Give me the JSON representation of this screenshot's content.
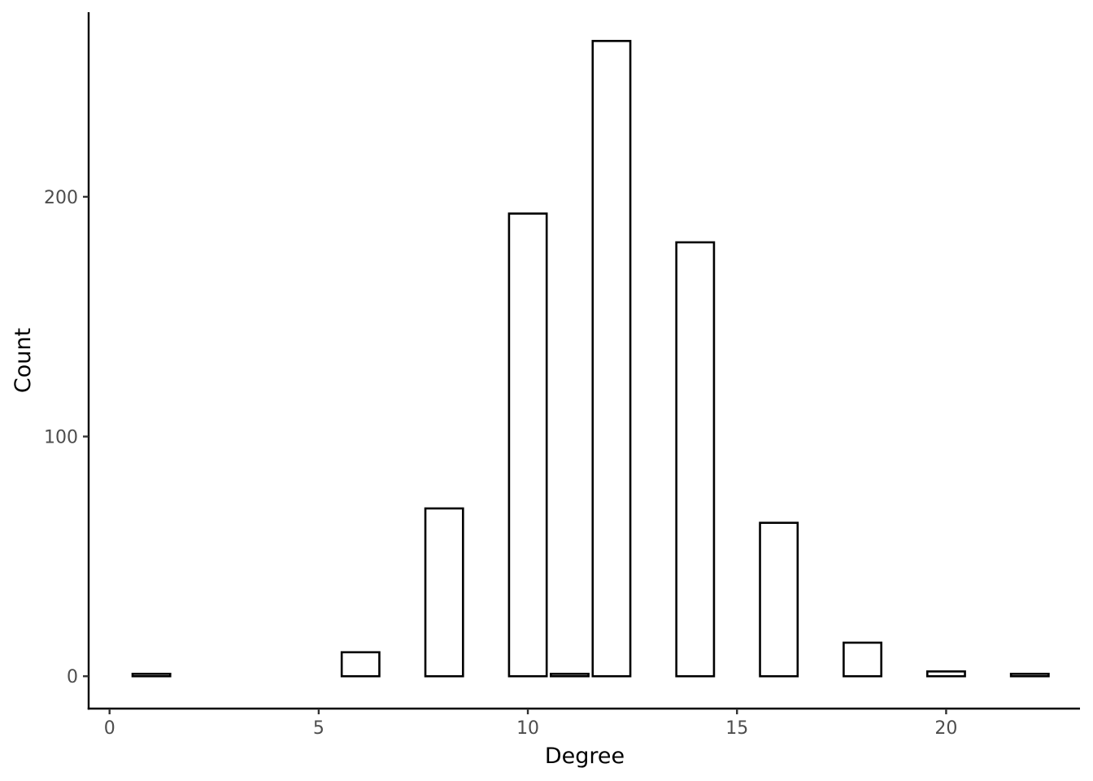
{
  "chart_data": {
    "type": "bar",
    "title": "",
    "xlabel": "Degree",
    "ylabel": "Count",
    "x": [
      1,
      6,
      8,
      10,
      11,
      12,
      14,
      16,
      18,
      20,
      22
    ],
    "values": [
      1,
      10,
      70,
      193,
      1,
      265,
      181,
      64,
      14,
      2,
      1
    ],
    "bar_width": 0.9,
    "xlim": [
      -0.5,
      23.2
    ],
    "ylim": [
      -13.5,
      277
    ],
    "xticks": [
      0,
      5,
      10,
      15,
      20
    ],
    "yticks": [
      0,
      100,
      200
    ],
    "grid": false,
    "legend": "none",
    "colors": {
      "bar_fill": "#ffffff",
      "bar_stroke": "#000000",
      "axis": "#000000",
      "tick_text": "#4d4d4d",
      "background": "#ffffff"
    }
  }
}
